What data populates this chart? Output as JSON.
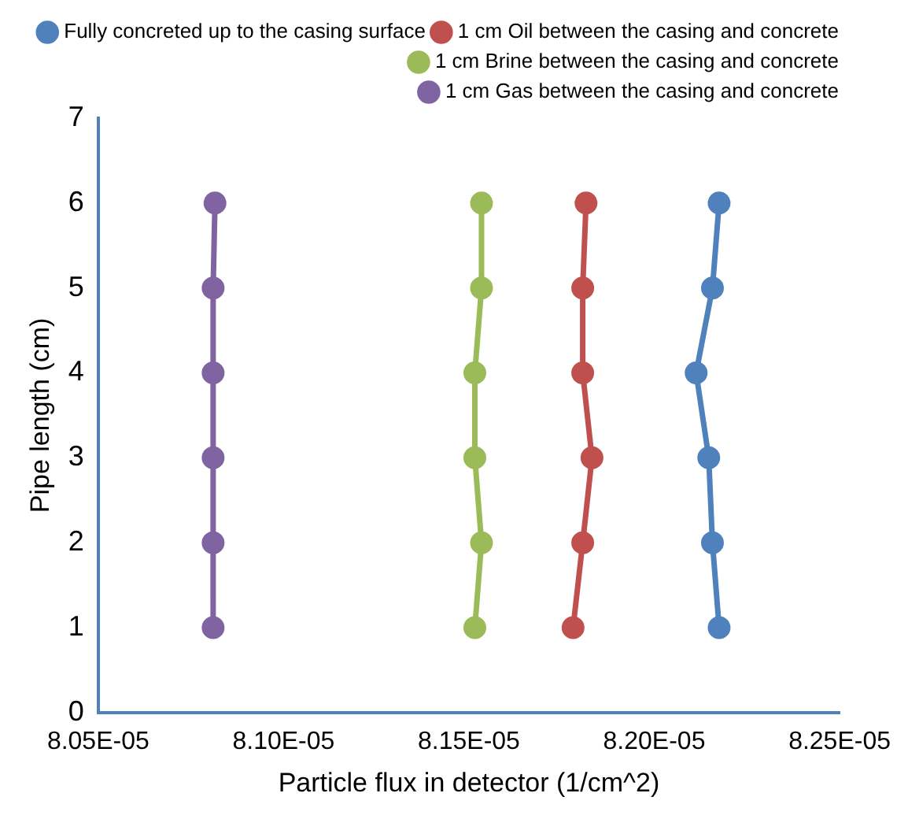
{
  "chart_data": {
    "type": "line",
    "xlabel": "Particle flux in detector (1/cm^2)",
    "ylabel": "Pipe length (cm)",
    "series": [
      {
        "name": "Fully concreted up to the casing surface",
        "color": "#4f81bd",
        "x": [
          8.2175e-05,
          8.2157e-05,
          8.2147e-05,
          8.2113e-05,
          8.2157e-05,
          8.2175e-05
        ],
        "values": [
          1,
          2,
          3,
          4,
          5,
          6
        ]
      },
      {
        "name": "1 cm Oil between the casing and concrete",
        "color": "#c0504d",
        "x": [
          8.1781e-05,
          8.1807e-05,
          8.1832e-05,
          8.1807e-05,
          8.1807e-05,
          8.1816e-05
        ],
        "values": [
          1,
          2,
          3,
          4,
          5,
          6
        ]
      },
      {
        "name": "1 cm Brine between the casing and concrete",
        "color": "#9bbb59",
        "x": [
          8.1516e-05,
          8.1534e-05,
          8.1516e-05,
          8.1516e-05,
          8.1534e-05,
          8.1534e-05
        ],
        "values": [
          1,
          2,
          3,
          4,
          5,
          6
        ]
      },
      {
        "name": "1 cm Gas between the casing and concrete",
        "color": "#8064a2",
        "x": [
          8.081e-05,
          8.081e-05,
          8.081e-05,
          8.081e-05,
          8.081e-05,
          8.0815e-05
        ],
        "values": [
          1,
          2,
          3,
          4,
          5,
          6
        ]
      }
    ],
    "xlim": [
      8.05e-05,
      8.25e-05
    ],
    "xticks": [
      {
        "value": 8.05e-05,
        "label": "8.05E-05"
      },
      {
        "value": 8.1e-05,
        "label": "8.10E-05"
      },
      {
        "value": 8.15e-05,
        "label": "8.15E-05"
      },
      {
        "value": 8.2e-05,
        "label": "8.20E-05"
      },
      {
        "value": 8.25e-05,
        "label": "8.25E-05"
      }
    ],
    "ylim": [
      0,
      7
    ],
    "yticks": [
      0,
      1,
      2,
      3,
      4,
      5,
      6,
      7
    ],
    "legend": "top right",
    "marker": "circle",
    "line_style": "solid",
    "grid": false
  }
}
